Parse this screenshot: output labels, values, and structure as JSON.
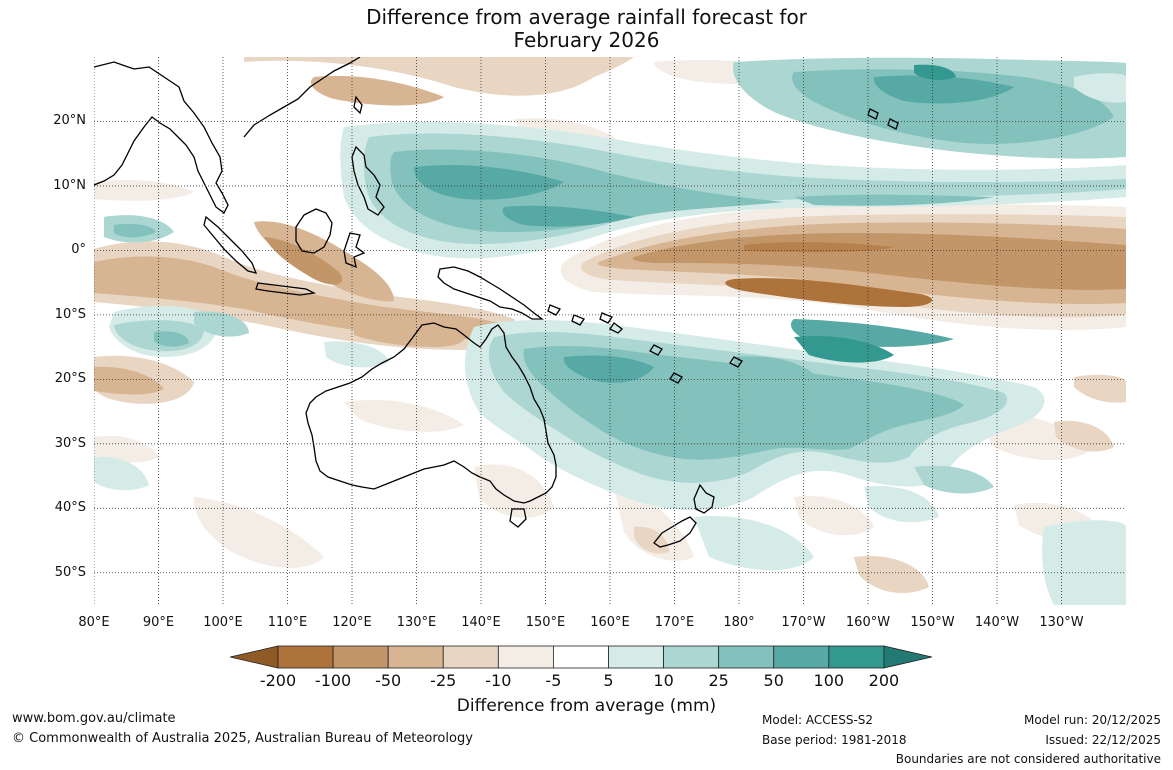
{
  "title": {
    "line1": "Difference from average rainfall forecast for",
    "line2": "February 2026"
  },
  "map": {
    "projection": "equirectangular",
    "lon_range_deg": [
      80,
      240
    ],
    "lat_range_deg": [
      -55,
      30
    ],
    "lat_labels": [
      "20°N",
      "10°N",
      "0°",
      "10°S",
      "20°S",
      "30°S",
      "40°S",
      "50°S"
    ],
    "lon_labels": [
      "80°E",
      "90°E",
      "100°E",
      "110°E",
      "120°E",
      "130°E",
      "140°E",
      "150°E",
      "160°E",
      "170°E",
      "180°",
      "170°W",
      "160°W",
      "150°W",
      "140°W",
      "130°W"
    ],
    "gridlines": "dotted",
    "pattern": "drier than average (brown) along a broad equatorial band from 165°E to 130°W and over northern Australia / Indonesia; wetter than average (teal) over western Pacific warm pool, eastern and north-eastern Australia and the south-west Pacific",
    "coastline_color": "#000000",
    "background_color": "#ffffff"
  },
  "colorbar": {
    "title": "Difference from average (mm)",
    "tick_labels": [
      "-200",
      "-100",
      "-50",
      "-25",
      "-10",
      "-5",
      "5",
      "10",
      "25",
      "50",
      "100",
      "200"
    ],
    "bins": [
      {
        "range": "< -200",
        "color": "#8f5a26"
      },
      {
        "range": "-200 to -100",
        "color": "#ad733a"
      },
      {
        "range": "-100 to -50",
        "color": "#c39669"
      },
      {
        "range": "-50 to -25",
        "color": "#d7b593"
      },
      {
        "range": "-25 to -10",
        "color": "#e8d5c2"
      },
      {
        "range": "-10 to -5",
        "color": "#f3ede6"
      },
      {
        "range": "-5 to 5",
        "color": "#ffffff"
      },
      {
        "range": "5 to 10",
        "color": "#d5ebe8"
      },
      {
        "range": "10 to 25",
        "color": "#acd6d2"
      },
      {
        "range": "25 to 50",
        "color": "#83c1bc"
      },
      {
        "range": "50 to 100",
        "color": "#56a9a4"
      },
      {
        "range": "100 to 200",
        "color": "#329890"
      },
      {
        "range": "> 200",
        "color": "#237a74"
      }
    ]
  },
  "footer": {
    "website": "www.bom.gov.au/climate",
    "copyright": "© Commonwealth of Australia 2025, Australian Bureau of Meteorology",
    "model": "Model: ACCESS-S2",
    "base_period": "Base period: 1981-2018",
    "model_run": "Model run: 20/12/2025",
    "issued": "Issued: 22/12/2025",
    "disclaimer": "Boundaries are not considered authoritative"
  }
}
